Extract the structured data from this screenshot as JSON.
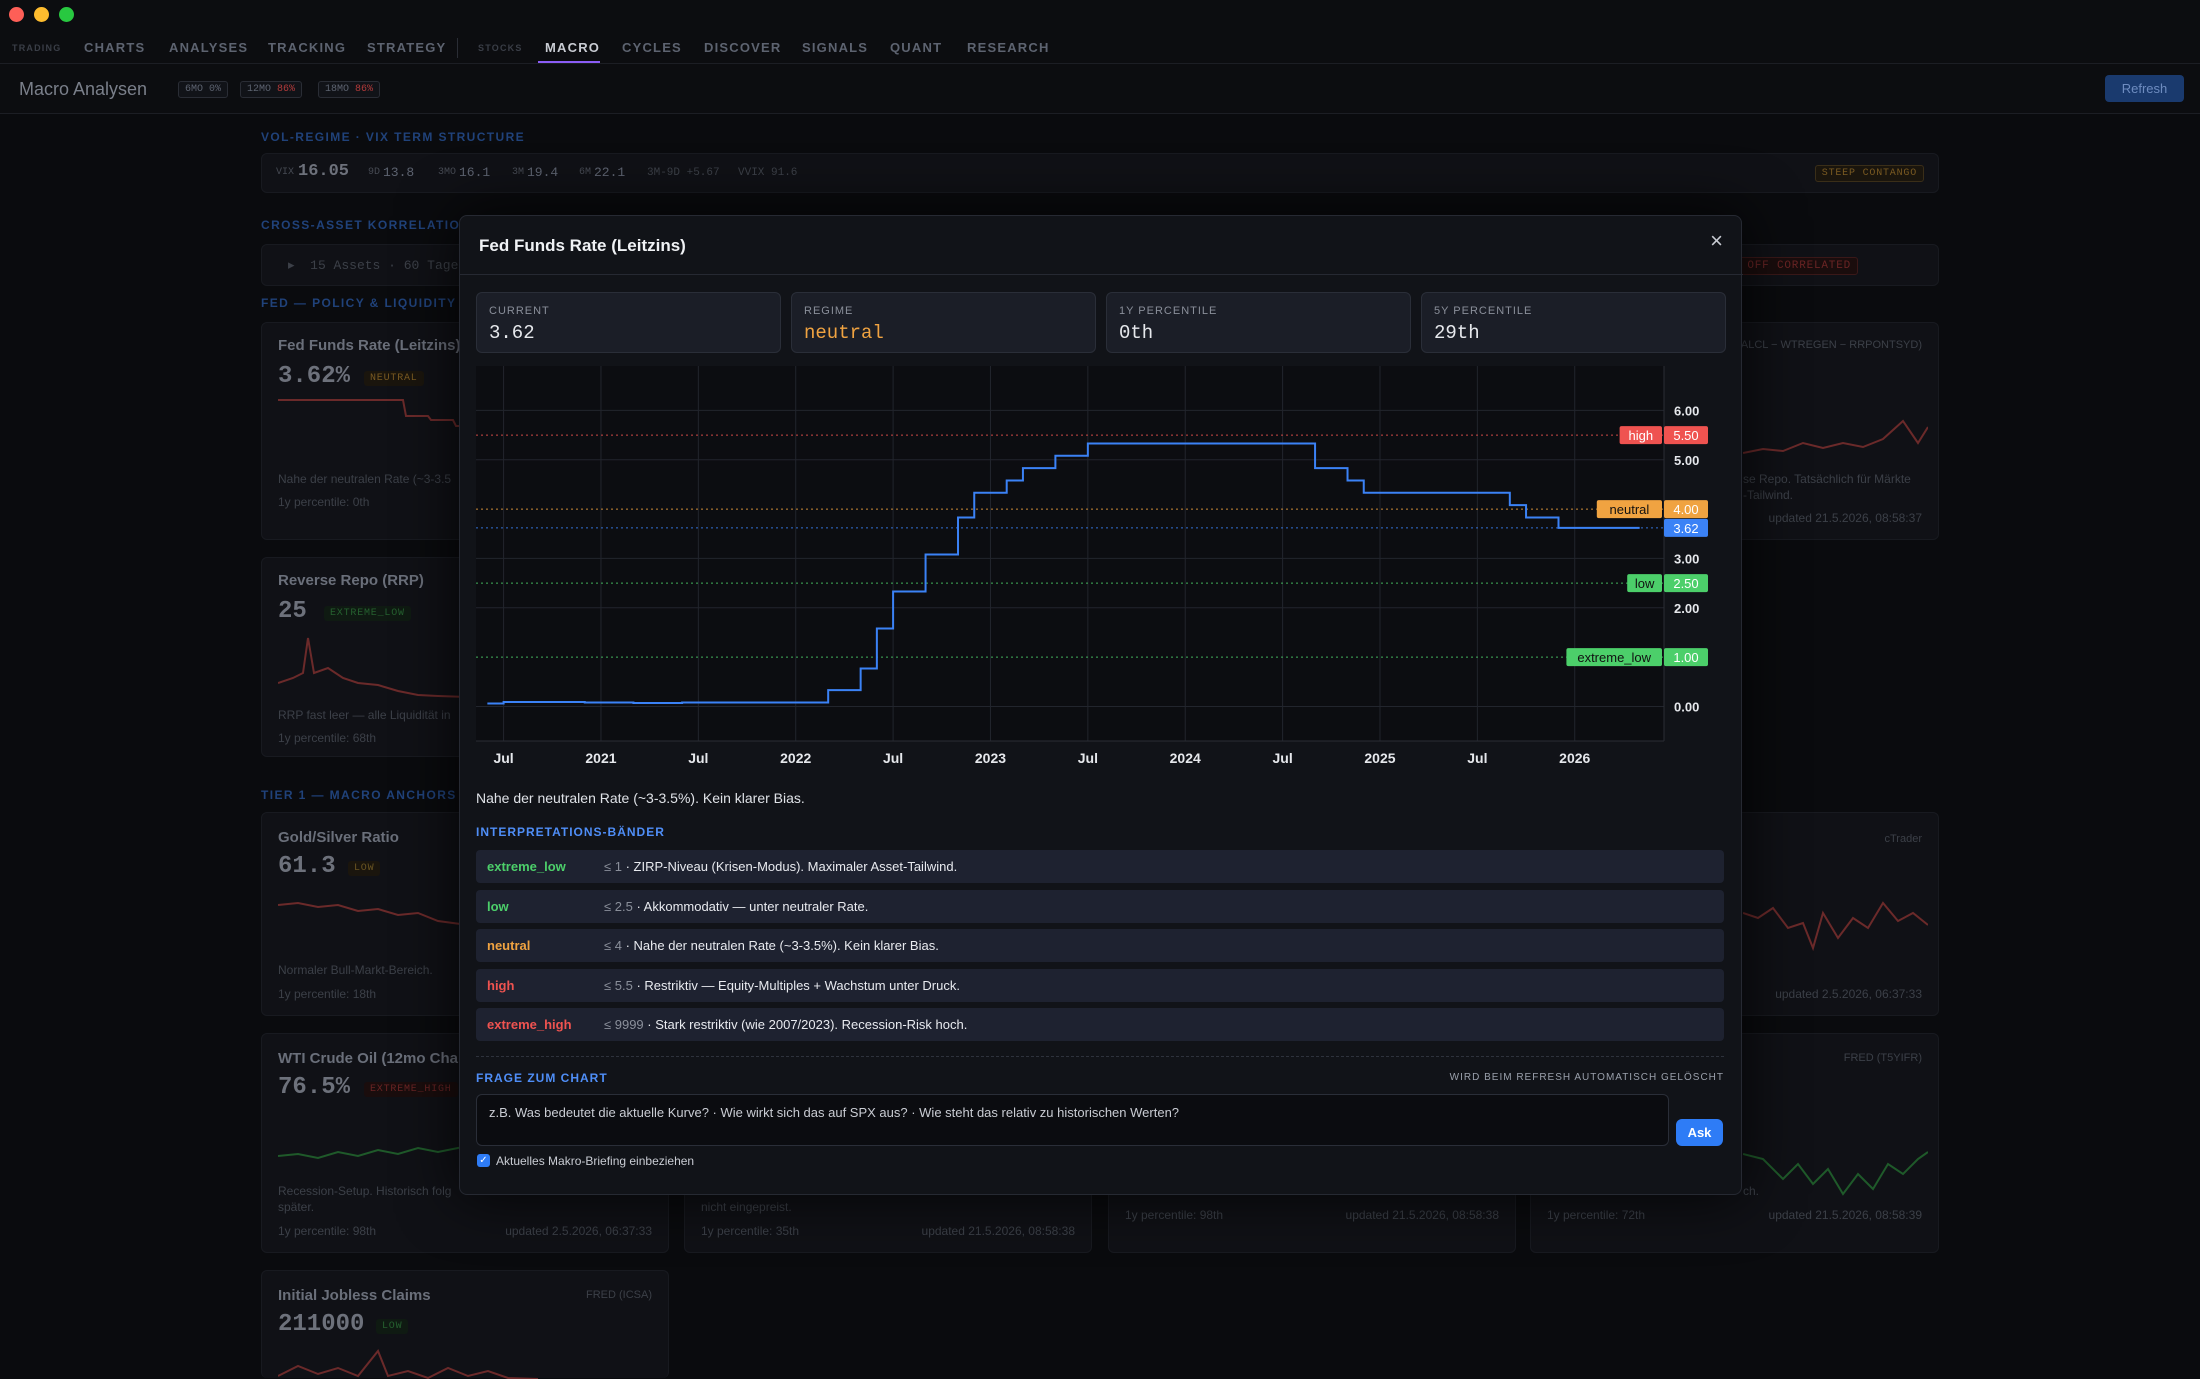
{
  "nav": {
    "items": [
      "TRADING",
      "CHARTS",
      "ANALYSES",
      "TRACKING",
      "STRATEGY",
      "STOCKS",
      "MACRO",
      "CYCLES",
      "DISCOVER",
      "SIGNALS",
      "QUANT",
      "RESEARCH"
    ],
    "active": "MACRO"
  },
  "header": {
    "title": "Macro Analysen",
    "pills": [
      {
        "label": "6MO",
        "value": "0%"
      },
      {
        "label": "12MO",
        "value": "86%"
      },
      {
        "label": "18MO",
        "value": "86%"
      }
    ],
    "refresh_label": "Refresh"
  },
  "vol": {
    "section": "VOL-REGIME · VIX TERM STRUCTURE",
    "vix_label": "VIX",
    "vix": "16.05",
    "items": [
      {
        "l": "9D",
        "v": "13.8"
      },
      {
        "l": "3MO",
        "v": "16.1"
      },
      {
        "l": "3M",
        "v": "19.4"
      },
      {
        "l": "6M",
        "v": "22.1"
      }
    ],
    "spread": "3M-9D +5.67",
    "vvix": "VVIX 91.6",
    "status": "STEEP CONTANGO"
  },
  "corr": {
    "section": "CROSS-ASSET KORRELATIONEN",
    "info": "15 Assets · 60 Tage",
    "status": "RISK OFF CORRELATED"
  },
  "fed_section": "FED — POLICY & LIQUIDITY",
  "tier1_section": "TIER 1 — MACRO ANCHORS",
  "bg_cards": {
    "fed": {
      "title": "Fed Funds Rate (Leitzins)",
      "value": "3.62%",
      "badge": "NEUTRAL",
      "note": "Nahe der neutralen Rate (~3-3.5",
      "pct": "1y percentile: 0th"
    },
    "rrp": {
      "title": "Reverse Repo (RRP)",
      "value": "25",
      "badge": "EXTREME_LOW",
      "note": "RRP fast leer — alle Liquidität in",
      "pct": "1y percentile: 68th"
    },
    "gold": {
      "title": "Gold/Silver Ratio",
      "value": "61.3",
      "badge": "LOW",
      "note": "Normaler Bull-Markt-Bereich.",
      "pct": "1y percentile: 18th"
    },
    "wti": {
      "title": "WTI Crude Oil (12mo Chang",
      "value": "76.5%",
      "badge": "EXTREME_HIGH",
      "note": "Recession-Setup. Historisch folg",
      "note2": "später.",
      "pct": "1y percentile: 98th",
      "updated": "updated 2.5.2026, 06:37:33"
    },
    "jobless": {
      "title": "Initial Jobless Claims",
      "value": "211000",
      "badge": "LOW",
      "src": "FRED (ICSA)"
    },
    "right_top": {
      "src": "ALCL − WTREGEN − RRPONTSYD)",
      "note": "se Repo. Tatsächlich für Märkte",
      "note2": "-Tailwind.",
      "updated": "updated 21.5.2026, 08:58:37"
    },
    "right_mid": {
      "src": "cTrader",
      "updated": "updated 2.5.2026, 06:37:33"
    },
    "right_low": {
      "src": "FRED (T5YIFR)",
      "note": "ch.",
      "pct": "1y percentile: 72th",
      "updated": "updated 21.5.2026, 08:58:39"
    },
    "mid1": {
      "note": "nicht eingepreist.",
      "pct": "1y percentile: 35th",
      "updated": "updated 21.5.2026, 08:58:38"
    },
    "mid2": {
      "pct": "1y percentile: 98th",
      "updated": "updated 21.5.2026, 08:58:38"
    }
  },
  "modal": {
    "title": "Fed Funds Rate (Leitzins)",
    "close": "×",
    "stats": [
      {
        "label": "CURRENT",
        "value": "3.62",
        "color": "#e6e8ec"
      },
      {
        "label": "REGIME",
        "value": "neutral",
        "color": "#f0a341"
      },
      {
        "label": "1Y PERCENTILE",
        "value": "0th",
        "color": "#e6e8ec"
      },
      {
        "label": "5Y PERCENTILE",
        "value": "29th",
        "color": "#e6e8ec"
      }
    ],
    "description": "Nahe der neutralen Rate (~3-3.5%). Kein klarer Bias.",
    "bands_title": "INTERPRETATIONS-BÄNDER",
    "bands": [
      {
        "name": "extreme_low",
        "thr": "≤ 1",
        "text": " · ZIRP-Niveau (Krisen-Modus). Maximaler Asset-Tailwind.",
        "color": "#4ccf6a"
      },
      {
        "name": "low",
        "thr": "≤ 2.5",
        "text": " · Akkommodativ — unter neutraler Rate.",
        "color": "#4ccf6a"
      },
      {
        "name": "neutral",
        "thr": "≤ 4",
        "text": " · Nahe der neutralen Rate (~3-3.5%). Kein klarer Bias.",
        "color": "#f0a341"
      },
      {
        "name": "high",
        "thr": "≤ 5.5",
        "text": " · Restriktiv — Equity-Multiples + Wachstum unter Druck.",
        "color": "#ef5350"
      },
      {
        "name": "extreme_high",
        "thr": "≤ 9999",
        "text": " · Stark restriktiv (wie 2007/2023). Recession-Risk hoch.",
        "color": "#ef5350"
      }
    ],
    "question_title": "FRAGE ZUM CHART",
    "question_note": "WIRD BEIM REFRESH AUTOMATISCH GELÖSCHT",
    "question_placeholder": "z.B. Was bedeutet die aktuelle Kurve? · Wie wirkt sich das auf SPX aus? · Wie steht das relativ zu historischen Werten?",
    "ask_label": "Ask",
    "checkbox_label": "Aktuelles Makro-Briefing einbeziehen"
  },
  "chart_data": {
    "type": "line",
    "title": "",
    "x_ticks": [
      "Jul",
      "2021",
      "Jul",
      "2022",
      "Jul",
      "2023",
      "Jul",
      "2024",
      "Jul",
      "2025",
      "Jul",
      "2026"
    ],
    "y_ticks": [
      "0.00",
      "2.00",
      "3.00",
      "5.00",
      "6.00"
    ],
    "ylim": [
      -0.7,
      6.9
    ],
    "grid": true,
    "series": [
      {
        "color": "#3b82f6",
        "points": [
          [
            "2020-06",
            0.06
          ],
          [
            "2020-07",
            0.09
          ],
          [
            "2020-09",
            0.09
          ],
          [
            "2020-12",
            0.08
          ],
          [
            "2021-03",
            0.07
          ],
          [
            "2021-06",
            0.08
          ],
          [
            "2021-09",
            0.08
          ],
          [
            "2021-12",
            0.08
          ],
          [
            "2022-03",
            0.33
          ],
          [
            "2022-05",
            0.77
          ],
          [
            "2022-06",
            1.58
          ],
          [
            "2022-07",
            2.33
          ],
          [
            "2022-09",
            3.08
          ],
          [
            "2022-11",
            3.83
          ],
          [
            "2022-12",
            4.33
          ],
          [
            "2023-02",
            4.58
          ],
          [
            "2023-03",
            4.83
          ],
          [
            "2023-05",
            5.08
          ],
          [
            "2023-07",
            5.33
          ],
          [
            "2024-09",
            4.83
          ],
          [
            "2024-11",
            4.58
          ],
          [
            "2024-12",
            4.33
          ],
          [
            "2025-09",
            4.08
          ],
          [
            "2025-10",
            3.83
          ],
          [
            "2025-12",
            3.62
          ],
          [
            "2026-05",
            3.62
          ]
        ]
      }
    ],
    "thresholds": [
      {
        "name": "high",
        "value": 5.5,
        "label": "5.50",
        "color": "#ef5350"
      },
      {
        "name": "neutral",
        "value": 4.0,
        "label": "4.00",
        "color": "#f0a341"
      },
      {
        "name": "current",
        "value": 3.62,
        "label": "3.62",
        "color": "#3b82f6"
      },
      {
        "name": "low",
        "value": 2.5,
        "label": "2.50",
        "color": "#4ccf6a"
      },
      {
        "name": "extreme_low",
        "value": 1.0,
        "label": "1.00",
        "color": "#4ccf6a"
      }
    ]
  }
}
